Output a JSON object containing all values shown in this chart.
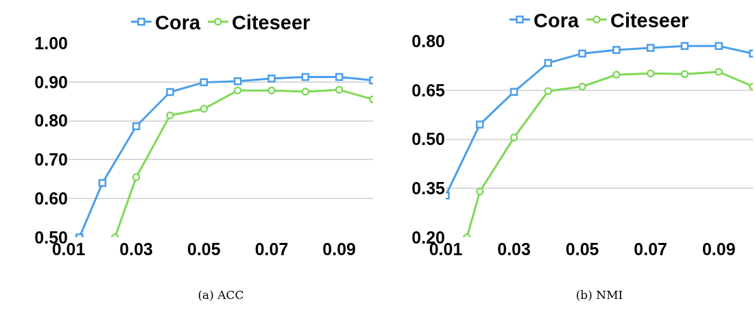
{
  "chart_data": [
    {
      "type": "line",
      "xlabel": "(a) ACC",
      "xlim": [
        0.01,
        0.1
      ],
      "xticks": [
        0.01,
        0.03,
        0.05,
        0.07,
        0.09
      ],
      "ylim": [
        0.5,
        1.0
      ],
      "yticks": [
        {
          "value": 0.5,
          "label": "0.50"
        },
        {
          "value": 0.6,
          "label": "0.60"
        },
        {
          "value": 0.7,
          "label": "0.70"
        },
        {
          "value": 0.8,
          "label": "0.80"
        },
        {
          "value": 0.9,
          "label": "0.90"
        },
        {
          "value": 1.0,
          "label": "1.00"
        }
      ],
      "grid": "y",
      "legend": "top",
      "line_style": "solid",
      "series": [
        {
          "name": "Cora",
          "color": "#4a9eea",
          "marker": "square",
          "x": [
            0.0132,
            0.02,
            0.03,
            0.04,
            0.05,
            0.06,
            0.07,
            0.08,
            0.09,
            0.1
          ],
          "values": [
            0.5,
            0.64,
            0.786,
            0.874,
            0.899,
            0.902,
            0.909,
            0.913,
            0.913,
            0.904
          ]
        },
        {
          "name": "Citeseer",
          "color": "#7ed957",
          "marker": "circle",
          "x": [
            0.0237,
            0.03,
            0.04,
            0.05,
            0.06,
            0.07,
            0.08,
            0.09,
            0.1
          ],
          "values": [
            0.5,
            0.655,
            0.814,
            0.831,
            0.878,
            0.878,
            0.875,
            0.88,
            0.855
          ]
        }
      ]
    },
    {
      "type": "line",
      "xlabel": "(b) NMI",
      "xlim": [
        0.01,
        0.1
      ],
      "xticks": [
        0.01,
        0.03,
        0.05,
        0.07,
        0.09
      ],
      "ylim": [
        0.2,
        0.8
      ],
      "yticks": [
        {
          "value": 0.2,
          "label": "0.20"
        },
        {
          "value": 0.35,
          "label": "0.35"
        },
        {
          "value": 0.5,
          "label": "0.50"
        },
        {
          "value": 0.65,
          "label": "0.65"
        },
        {
          "value": 0.8,
          "label": "0.80"
        }
      ],
      "grid": "y",
      "legend": "top",
      "line_style": "solid",
      "series": [
        {
          "name": "Cora",
          "color": "#4a9eea",
          "marker": "square",
          "x": [
            0.01,
            0.02,
            0.03,
            0.04,
            0.05,
            0.06,
            0.07,
            0.08,
            0.09,
            0.1
          ],
          "values": [
            0.328,
            0.545,
            0.645,
            0.733,
            0.762,
            0.773,
            0.779,
            0.785,
            0.785,
            0.762
          ]
        },
        {
          "name": "Citeseer",
          "color": "#7ed957",
          "marker": "circle",
          "x": [
            0.0162,
            0.02,
            0.03,
            0.04,
            0.05,
            0.06,
            0.07,
            0.08,
            0.09,
            0.1
          ],
          "values": [
            0.2,
            0.34,
            0.505,
            0.647,
            0.661,
            0.697,
            0.701,
            0.699,
            0.706,
            0.661
          ]
        }
      ]
    }
  ]
}
